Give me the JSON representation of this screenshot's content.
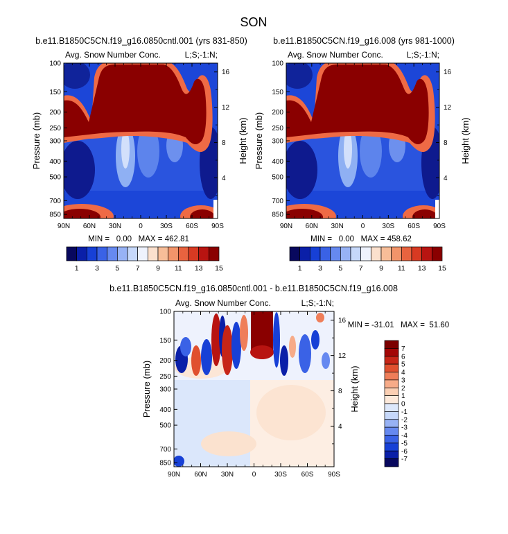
{
  "page_title": "SON",
  "colors": {
    "palette15": [
      "#08085e",
      "#0a1fa8",
      "#1740d6",
      "#3a62e6",
      "#6689f0",
      "#97b2f5",
      "#c6d8fa",
      "#eef2fd",
      "#fbe0cd",
      "#f7bd98",
      "#f2946a",
      "#e8633f",
      "#d83a22",
      "#b81411",
      "#8a0000"
    ],
    "palette16": [
      "#08085e",
      "#0a1fa8",
      "#1740d6",
      "#3a62e6",
      "#6689f0",
      "#97b2f5",
      "#c6d8fa",
      "#dde8fb",
      "#fde9da",
      "#fbcfb3",
      "#f7ab88",
      "#ef7e59",
      "#e0502f",
      "#c72517",
      "#a30606",
      "#7c0000"
    ]
  },
  "chart_data": [
    {
      "type": "heatmap",
      "name": "control",
      "title": "b.e11.B1850C5CN.f19_g16.0850cntl.001 (yrs 831-850)",
      "left_label": "Avg. Snow Number Conc.",
      "right_label": "L;S;-1:N;",
      "ylabel": "Pressure (mb)",
      "ylabel_right": "Height (km)",
      "x_ticks": [
        "90N",
        "60N",
        "30N",
        "0",
        "30S",
        "60S",
        "90S"
      ],
      "x_tick_values": [
        90,
        60,
        30,
        0,
        -30,
        -60,
        -90
      ],
      "y_ticks": [
        "100",
        "150",
        "200",
        "250",
        "300",
        "400",
        "500",
        "700",
        "850"
      ],
      "y_tick_values": [
        100,
        150,
        200,
        250,
        300,
        400,
        500,
        700,
        850
      ],
      "y_right_ticks": [
        "16",
        "12",
        "8",
        "4"
      ],
      "y_right_values": [
        16,
        12,
        8,
        4
      ],
      "xlim": [
        90,
        -90
      ],
      "ylim": [
        100,
        900
      ],
      "stats": "MIN =   0.00   MAX = 462.81",
      "colorbar_ticks": [
        "1",
        "3",
        "5",
        "7",
        "9",
        "11",
        "13",
        "15"
      ],
      "colorbar_levels": 15
    },
    {
      "type": "heatmap",
      "name": "experiment",
      "title": "b.e11.B1850C5CN.f19_g16.008 (yrs 981-1000)",
      "left_label": "Avg. Snow Number Conc.",
      "right_label": "L;S;-1:N;",
      "ylabel": "Pressure (mb)",
      "ylabel_right": "Height (km)",
      "x_ticks": [
        "90N",
        "60N",
        "30N",
        "0",
        "30S",
        "60S",
        "90S"
      ],
      "x_tick_values": [
        90,
        60,
        30,
        0,
        -30,
        -60,
        -90
      ],
      "y_ticks": [
        "100",
        "150",
        "200",
        "250",
        "300",
        "400",
        "500",
        "700",
        "850"
      ],
      "y_tick_values": [
        100,
        150,
        200,
        250,
        300,
        400,
        500,
        700,
        850
      ],
      "y_right_ticks": [
        "16",
        "12",
        "8",
        "4"
      ],
      "y_right_values": [
        16,
        12,
        8,
        4
      ],
      "xlim": [
        90,
        -90
      ],
      "ylim": [
        100,
        900
      ],
      "stats": "MIN =   0.00   MAX = 458.62",
      "colorbar_ticks": [
        "1",
        "3",
        "5",
        "7",
        "9",
        "11",
        "13",
        "15"
      ],
      "colorbar_levels": 15
    },
    {
      "type": "heatmap",
      "name": "difference",
      "title": "b.e11.B1850C5CN.f19_g16.0850cntl.001 - b.e11.B1850C5CN.f19_g16.008",
      "left_label": "Avg. Snow Number Conc.",
      "right_label": "L;S;-1:N;",
      "ylabel": "Pressure (mb)",
      "ylabel_right": "Height (km)",
      "x_ticks": [
        "90N",
        "60N",
        "30N",
        "0",
        "30S",
        "60S",
        "90S"
      ],
      "x_tick_values": [
        90,
        60,
        30,
        0,
        -30,
        -60,
        -90
      ],
      "y_ticks": [
        "100",
        "150",
        "200",
        "250",
        "300",
        "400",
        "500",
        "700",
        "850"
      ],
      "y_tick_values": [
        100,
        150,
        200,
        250,
        300,
        400,
        500,
        700,
        850
      ],
      "y_right_ticks": [
        "16",
        "12",
        "8",
        "4"
      ],
      "y_right_values": [
        16,
        12,
        8,
        4
      ],
      "xlim": [
        90,
        -90
      ],
      "ylim": [
        100,
        900
      ],
      "stats": "MIN = -31.01   MAX =  51.60",
      "colorbar_ticks": [
        "7",
        "6",
        "5",
        "4",
        "3",
        "2",
        "1",
        "0",
        "-1",
        "-2",
        "-3",
        "-4",
        "-5",
        "-6",
        "-7"
      ],
      "colorbar_levels": 16
    }
  ]
}
